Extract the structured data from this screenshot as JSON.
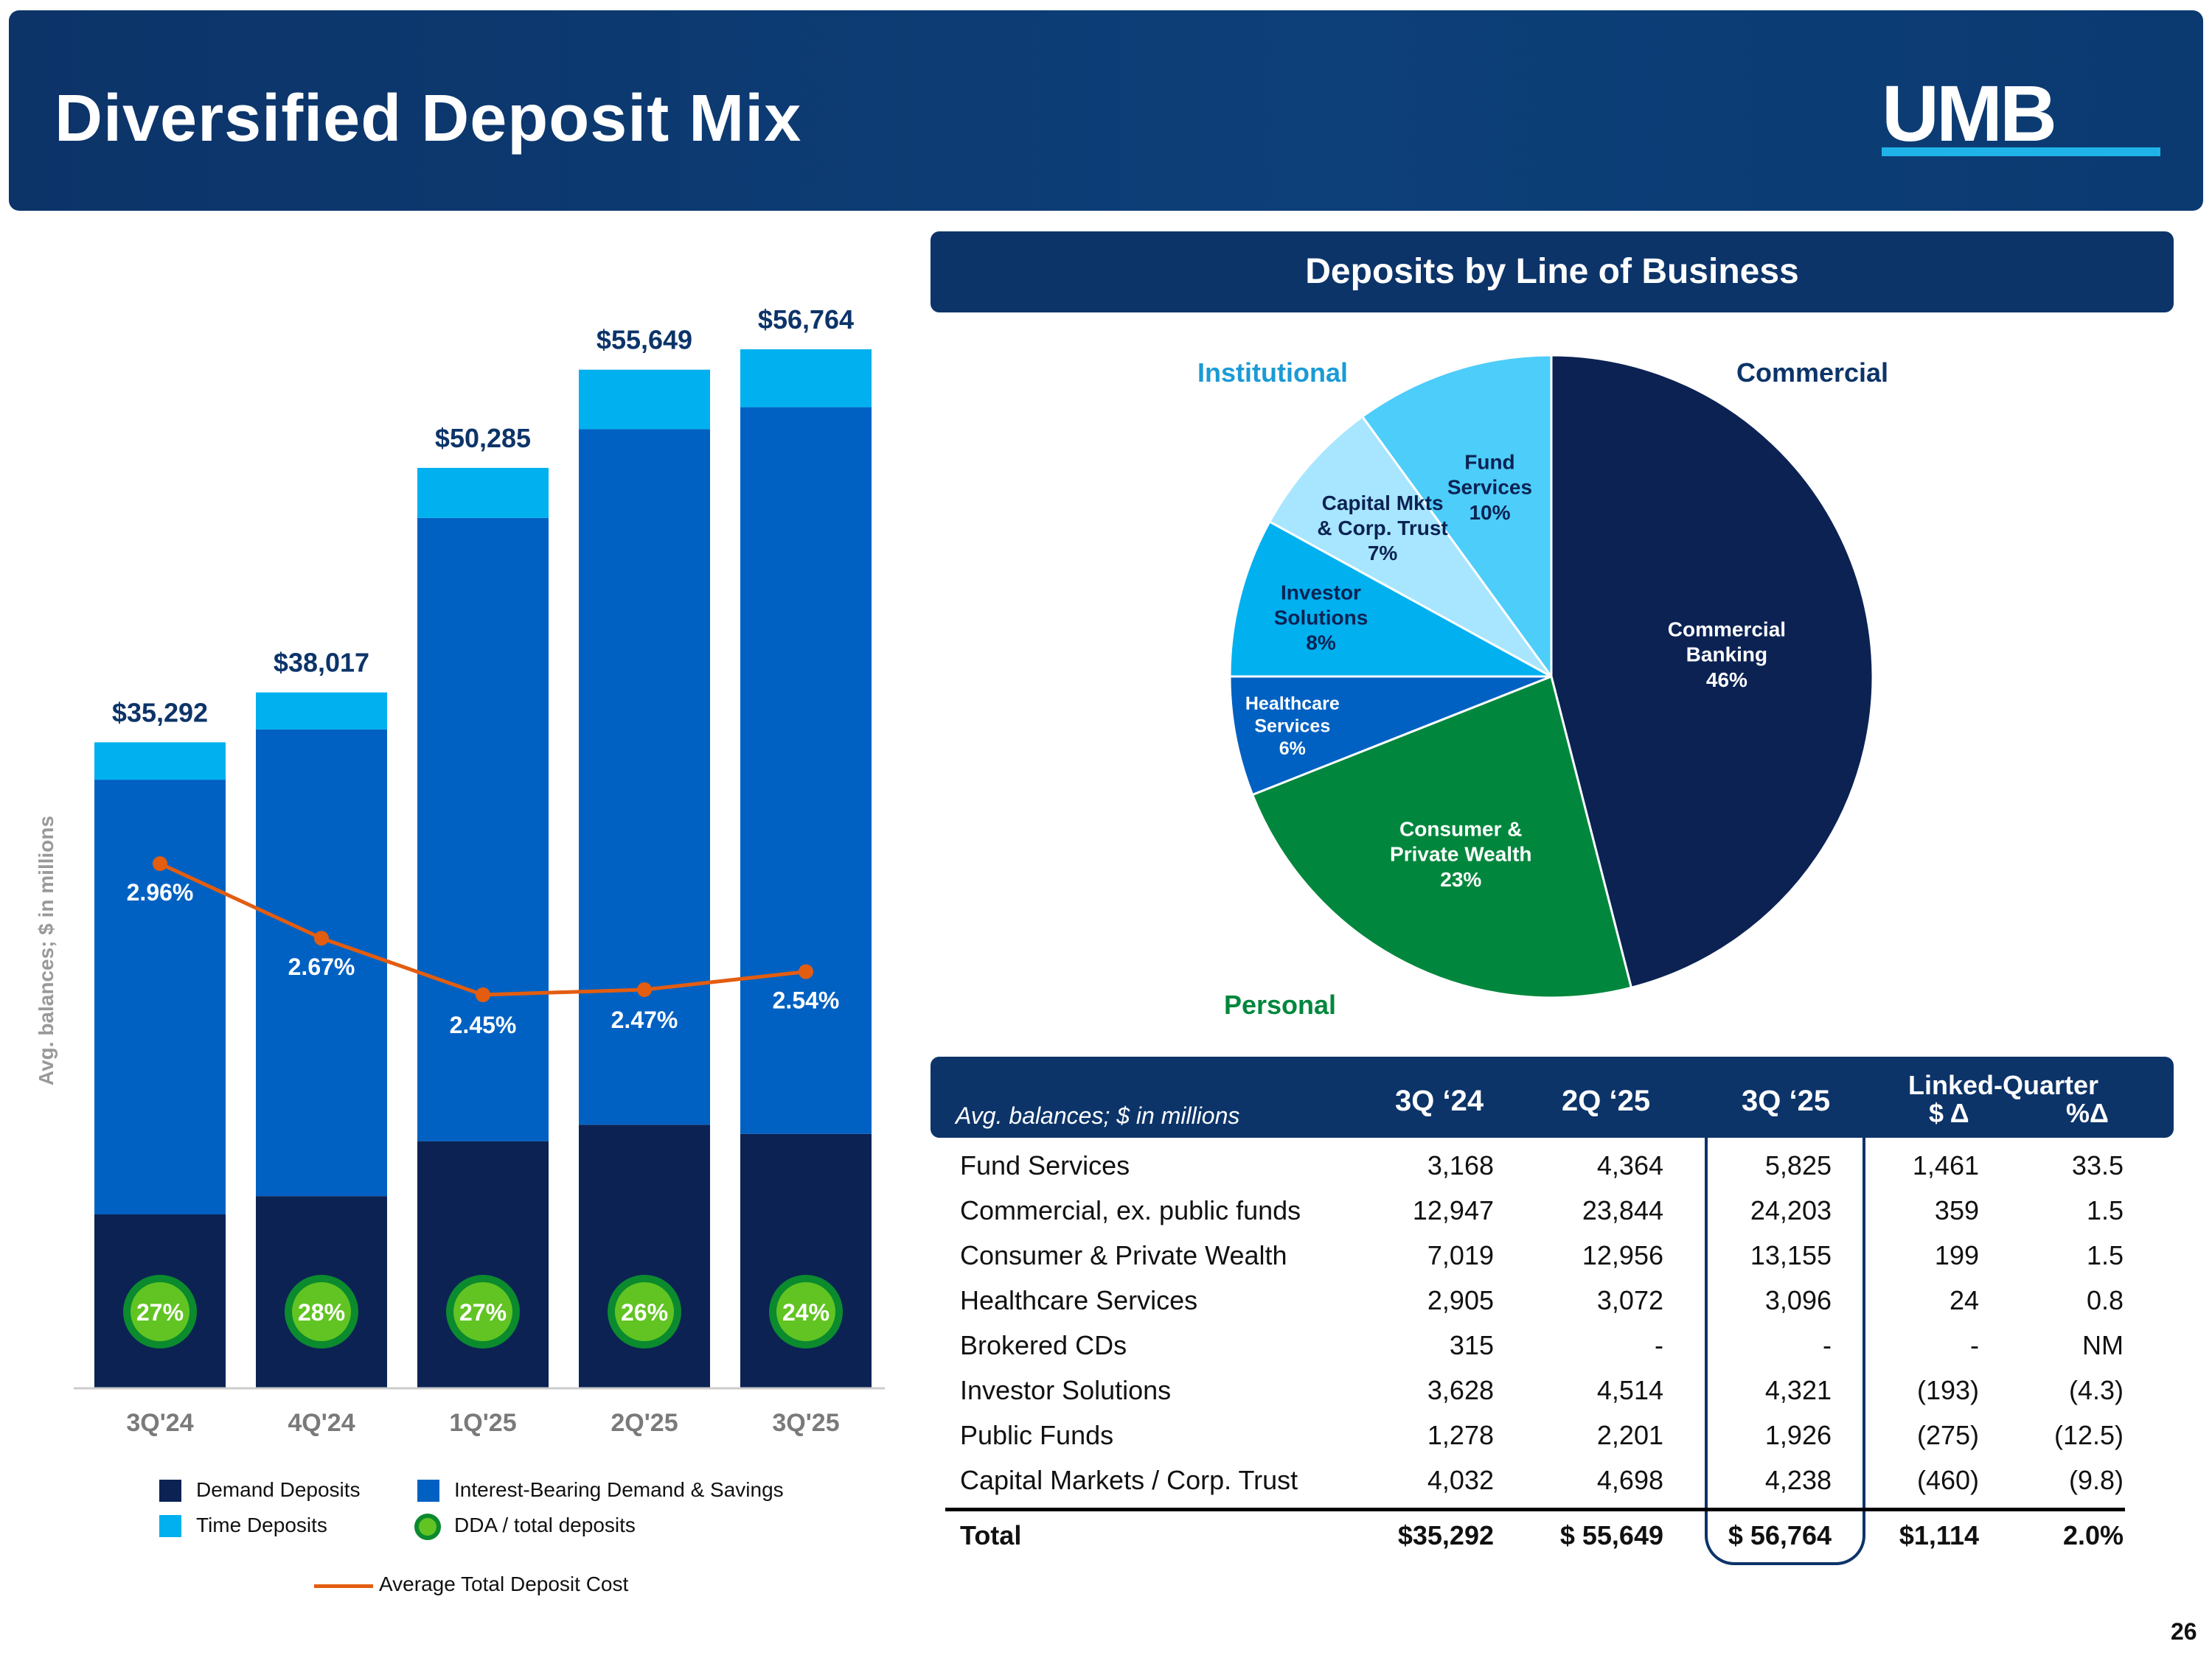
{
  "header": {
    "title": "Diversified Deposit Mix",
    "logo_text": "UMB"
  },
  "pie_panel": {
    "title": "Deposits by Line of Business"
  },
  "page_number": "26",
  "colors": {
    "demand": "#0b2253",
    "interest_bearing": "#0061c2",
    "time": "#00b0ef",
    "cost_line": "#e35d10",
    "dda_badge": "#61c422",
    "commercial_banking": "#0b2253",
    "consumer": "#00873d",
    "healthcare": "#0061c2",
    "investor": "#00b0ef",
    "capital_mkts": "#a8e6ff",
    "fund_services": "#4dcdf9"
  },
  "chart_data": [
    {
      "type": "bar",
      "stacked": true,
      "ylabel": "Avg. balances; $ in millions",
      "categories": [
        "3Q'24",
        "4Q'24",
        "1Q'25",
        "2Q'25",
        "3Q'25"
      ],
      "totals": [
        "$35,292",
        "$38,017",
        "$50,285",
        "$55,649",
        "$56,764"
      ],
      "total_values": [
        35292,
        38017,
        50285,
        55649,
        56764
      ],
      "series": [
        {
          "name": "Demand Deposits",
          "values": [
            9500,
            10500,
            13500,
            14400,
            13900
          ]
        },
        {
          "name": "Interest-Bearing Demand & Savings",
          "values": [
            23750,
            25500,
            34050,
            38000,
            39700
          ]
        },
        {
          "name": "Time Deposits",
          "values": [
            2042,
            2017,
            2735,
            3249,
            3164
          ]
        }
      ],
      "line_series": {
        "name": "Average Total Deposit Cost",
        "values": [
          2.96,
          2.67,
          2.45,
          2.47,
          2.54
        ],
        "labels": [
          "2.96%",
          "2.67%",
          "2.45%",
          "2.47%",
          "2.54%"
        ]
      },
      "dda_ratio": {
        "name": "DDA / total deposits",
        "labels": [
          "27%",
          "28%",
          "27%",
          "26%",
          "24%"
        ]
      },
      "ylim": [
        0,
        60000
      ],
      "legend": [
        "Demand Deposits",
        "Interest-Bearing Demand & Savings",
        "Time Deposits",
        "DDA / total deposits",
        "Average Total Deposit Cost"
      ]
    },
    {
      "type": "pie",
      "title": "Deposits by Line of Business",
      "groups": [
        "Institutional",
        "Commercial",
        "Personal"
      ],
      "slices": [
        {
          "label_lines": [
            "Commercial",
            "Banking",
            "46%"
          ],
          "value": 46
        },
        {
          "label_lines": [
            "Consumer &",
            "Private Wealth",
            "23%"
          ],
          "value": 23
        },
        {
          "label_lines": [
            "Healthcare",
            "Services",
            "6%"
          ],
          "value": 6
        },
        {
          "label_lines": [
            "Investor",
            "Solutions",
            "8%"
          ],
          "value": 8
        },
        {
          "label_lines": [
            "Capital Mkts",
            "& Corp. Trust",
            "7%"
          ],
          "value": 7
        },
        {
          "label_lines": [
            "Fund",
            "Services",
            "10%"
          ],
          "value": 10
        }
      ]
    },
    {
      "type": "table",
      "caption": "Avg. balances; $ in millions",
      "columns": [
        "3Q ‘24",
        "2Q ‘25",
        "3Q ‘25"
      ],
      "linked_quarter": {
        "title": "Linked-Quarter",
        "dollar": "$ Δ",
        "pct": "%Δ"
      },
      "rows": [
        [
          "Fund Services",
          "3,168",
          "4,364",
          "5,825",
          "1,461",
          "33.5"
        ],
        [
          "Commercial, ex. public funds",
          "12,947",
          "23,844",
          "24,203",
          "359",
          "1.5"
        ],
        [
          "Consumer & Private Wealth",
          "7,019",
          "12,956",
          "13,155",
          "199",
          "1.5"
        ],
        [
          "Healthcare Services",
          "2,905",
          "3,072",
          "3,096",
          "24",
          "0.8"
        ],
        [
          "Brokered CDs",
          "315",
          "-",
          "-",
          "-",
          "NM"
        ],
        [
          "Investor Solutions",
          "3,628",
          "4,514",
          "4,321",
          "(193)",
          "(4.3)"
        ],
        [
          "Public Funds",
          "1,278",
          "2,201",
          "1,926",
          "(275)",
          "(12.5)"
        ],
        [
          "Capital Markets / Corp. Trust",
          "4,032",
          "4,698",
          "4,238",
          "(460)",
          "(9.8)"
        ]
      ],
      "total": [
        "Total",
        "$35,292",
        "$ 55,649",
        "$ 56,764",
        "$1,114",
        "2.0%"
      ]
    }
  ]
}
